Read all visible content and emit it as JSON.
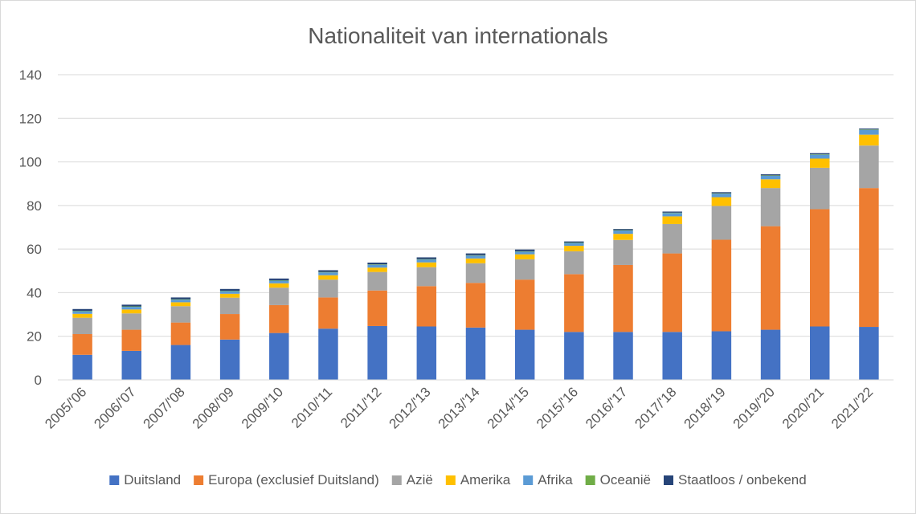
{
  "chart_data": {
    "type": "bar",
    "stacked": true,
    "title": "Nationaliteit van internationals",
    "xlabel": "",
    "ylabel": "",
    "ylim": [
      0,
      140
    ],
    "yticks": [
      "0",
      "20",
      "40",
      "60",
      "80",
      "100",
      "120",
      "140"
    ],
    "grid": true,
    "legend_position": "bottom",
    "categories": [
      "2005/'06",
      "2006/'07",
      "2007/'08",
      "2008/'09",
      "2009/'10",
      "2010/'11",
      "2011/'12",
      "2012/'13",
      "2013/'14",
      "2014/'15",
      "2015/'16",
      "2016/'17",
      "2017/'18",
      "2018/'19",
      "2019/'20",
      "2020/'21",
      "2021/'22"
    ],
    "series": [
      {
        "name": "Duitsland",
        "color": "#4472C4",
        "values": [
          11.5,
          13.3,
          16,
          18.5,
          21.5,
          23.5,
          24.7,
          24.5,
          24,
          23,
          22,
          22,
          22,
          22.3,
          23,
          24.5,
          24.3
        ]
      },
      {
        "name": "Europa (exclusief Duitsland)",
        "color": "#ED7D31",
        "values": [
          9.5,
          9.7,
          10.3,
          11.7,
          12.8,
          14.3,
          16.3,
          18.5,
          20.5,
          23,
          26.5,
          30.7,
          36,
          42,
          47.5,
          53.8,
          63.7
        ]
      },
      {
        "name": "Azië",
        "color": "#A5A5A5",
        "values": [
          7.5,
          7.5,
          7.5,
          7.5,
          8,
          8.2,
          8.5,
          8.7,
          9,
          9.3,
          10.5,
          11.5,
          13.5,
          15.5,
          17.5,
          19,
          19.5
        ]
      },
      {
        "name": "Amerika",
        "color": "#FFC000",
        "values": [
          1.8,
          1.8,
          1.8,
          1.8,
          2,
          2,
          2,
          2.2,
          2.2,
          2.3,
          2.5,
          2.8,
          3.5,
          4,
          4,
          4.2,
          5
        ]
      },
      {
        "name": "Afrika",
        "color": "#5B9BD5",
        "values": [
          1.2,
          1.2,
          1.2,
          1.2,
          1.2,
          1.3,
          1.3,
          1.3,
          1.3,
          1.2,
          1.3,
          1.5,
          1.5,
          1.6,
          1.6,
          1.8,
          2.2
        ]
      },
      {
        "name": "Oceanië",
        "color": "#70AD47",
        "values": [
          0.2,
          0.2,
          0.2,
          0.2,
          0.2,
          0.2,
          0.2,
          0.2,
          0.2,
          0.2,
          0.2,
          0.2,
          0.2,
          0.2,
          0.2,
          0.2,
          0.2
        ]
      },
      {
        "name": "Staatloos / onbekend",
        "color": "#264478",
        "values": [
          0.8,
          0.8,
          0.8,
          0.8,
          0.8,
          0.8,
          0.8,
          0.8,
          0.8,
          0.8,
          0.5,
          0.5,
          0.5,
          0.5,
          0.5,
          0.5,
          0.4
        ]
      }
    ]
  }
}
